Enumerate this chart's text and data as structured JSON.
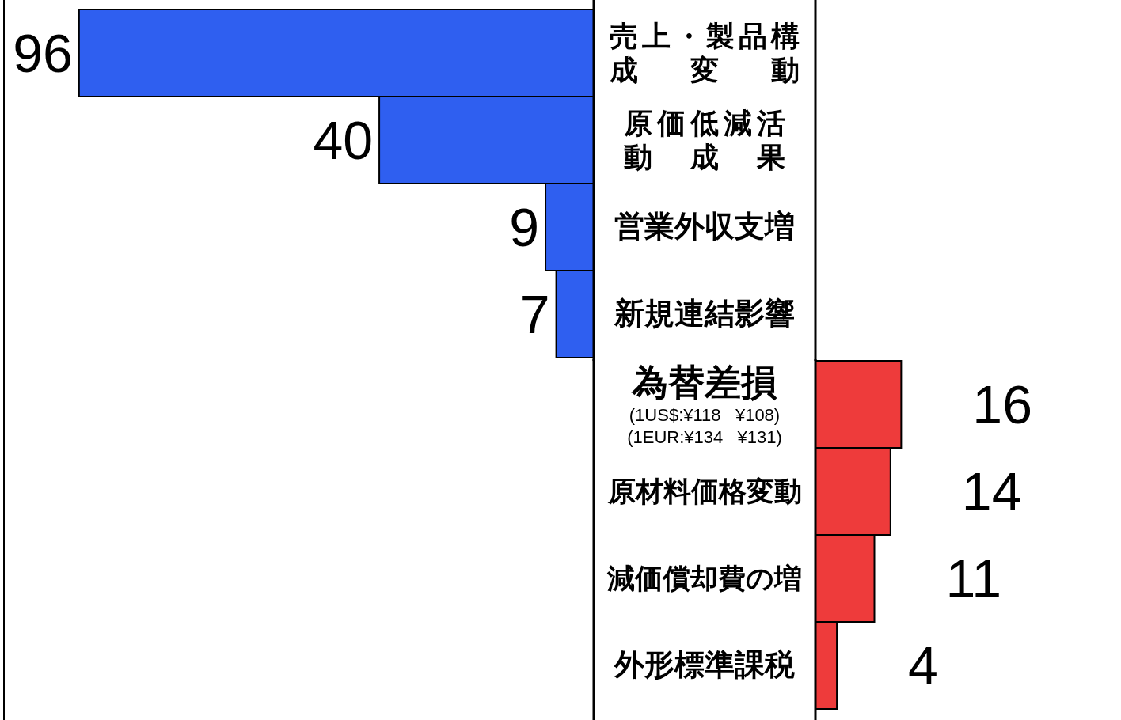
{
  "chart_data": [
    {
      "type": "bar",
      "orientation": "horizontal",
      "categories": [
        "売上・製品構成変動",
        "原価低減活動成果",
        "営業外収支増",
        "新規連結影響"
      ],
      "values": [
        96,
        40,
        9,
        7
      ],
      "color": "#2f5ff0",
      "xlim": [
        110,
        0
      ],
      "data_labels": true
    },
    {
      "type": "bar",
      "orientation": "horizontal",
      "categories": [
        "為替差損",
        "原材料価格変動",
        "減価償却費の増",
        "外形標準課税"
      ],
      "values": [
        16,
        14,
        11,
        4
      ],
      "color": "#ee3b3b",
      "data_labels": true,
      "annotations": [
        "(1US$:¥118   ¥108)",
        "(1EUR:¥134   ¥131)"
      ]
    }
  ]
}
